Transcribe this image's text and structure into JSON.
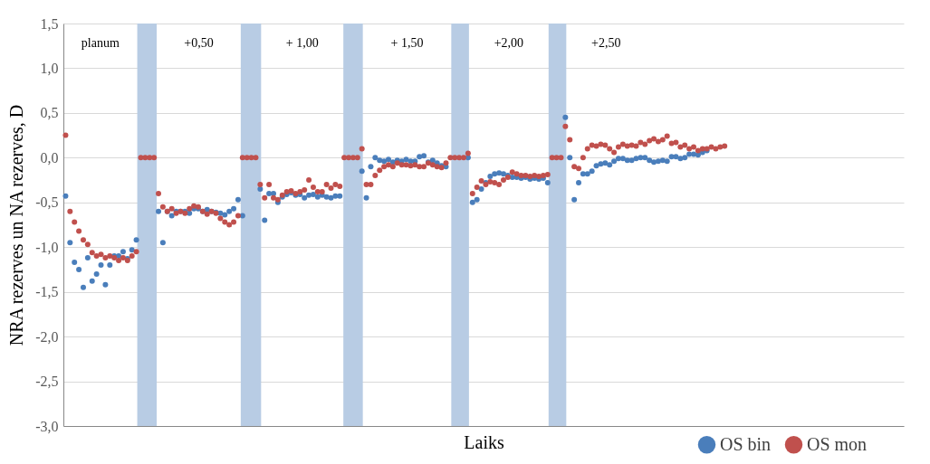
{
  "chart_data": {
    "type": "scatter",
    "xlabel": "Laiks",
    "ylabel": "NRA rezerves un NA rezerves, D",
    "ylim": [
      -3,
      1.5
    ],
    "categories": [
      null,
      null,
      null,
      null,
      null,
      null,
      null,
      null,
      null,
      null,
      null,
      null,
      null,
      null,
      null,
      null,
      null,
      null,
      null,
      null,
      null,
      null,
      null,
      null,
      null,
      null,
      null,
      null,
      null,
      null,
      null,
      null,
      null,
      null,
      null,
      null,
      null,
      null,
      null,
      null,
      null,
      null,
      null,
      null,
      null,
      null,
      null,
      null,
      null,
      null,
      null,
      null,
      null,
      null,
      null,
      null,
      null,
      null,
      null,
      null,
      null,
      null,
      null,
      null,
      null,
      null,
      null,
      null,
      null,
      null,
      null,
      null,
      null,
      null,
      null,
      null,
      null,
      null,
      null,
      null,
      null,
      null,
      null,
      null,
      null,
      null,
      null,
      null,
      null,
      null,
      null,
      null,
      null,
      null,
      null,
      null,
      null,
      null,
      null,
      null,
      null,
      null,
      null,
      null,
      null,
      null,
      null,
      null,
      null,
      null,
      null,
      null,
      null,
      null,
      null,
      null,
      null,
      null,
      null,
      null,
      null,
      null,
      null,
      null,
      null,
      null,
      null,
      null,
      null,
      null,
      null,
      null,
      null,
      null,
      null,
      null,
      null,
      null,
      null,
      null,
      null,
      null,
      null,
      null,
      null,
      null,
      null,
      null,
      null,
      null,
      null,
      null,
      null,
      null,
      null,
      null,
      null,
      null,
      null,
      null,
      null,
      null,
      null,
      null,
      null,
      null,
      null,
      null,
      null,
      null,
      null,
      null,
      null,
      null,
      null,
      null,
      null,
      null,
      null,
      null,
      null,
      null,
      null,
      null,
      null,
      null,
      null,
      null,
      null,
      null
    ],
    "yticks": [
      {
        "value": -3,
        "label": "-3,0"
      },
      {
        "value": -2.5,
        "label": "-2,5"
      },
      {
        "value": -2,
        "label": "-2,0"
      },
      {
        "value": -1.5,
        "label": "-1,5"
      },
      {
        "value": -1,
        "label": "-1,0"
      },
      {
        "value": -0.5,
        "label": "-0,5"
      },
      {
        "value": 0,
        "label": "0,0"
      },
      {
        "value": 0.5,
        "label": "0,5"
      },
      {
        "value": 1,
        "label": "1,0"
      },
      {
        "value": 1.5,
        "label": "1,5"
      }
    ],
    "tick_labels": "y",
    "grid": "y",
    "legend": "bottom right",
    "marker": "circle",
    "annotations": [
      "planum",
      "+0,50",
      "+ 1,00",
      "+ 1,50",
      "+2,00",
      "+2,50"
    ],
    "series": [
      {
        "name": "OS bin",
        "color": "#4a7ebb",
        "values": [
          -0.43,
          -0.95,
          -1.17,
          -1.25,
          -1.45,
          -1.12,
          -1.38,
          -1.3,
          -1.2,
          -1.42,
          -1.2,
          -1.1,
          -1.1,
          -1.05,
          -1.13,
          -1.03,
          -0.92,
          null,
          null,
          null,
          null,
          -0.6,
          -0.95,
          -0.6,
          -0.65,
          -0.6,
          -0.6,
          -0.6,
          -0.62,
          -0.57,
          -0.57,
          -0.6,
          -0.58,
          -0.6,
          -0.61,
          -0.62,
          -0.64,
          -0.6,
          -0.57,
          -0.47,
          -0.65,
          null,
          null,
          null,
          -0.35,
          -0.7,
          -0.4,
          -0.4,
          -0.5,
          -0.44,
          -0.41,
          -0.39,
          -0.42,
          -0.41,
          -0.45,
          -0.42,
          -0.41,
          -0.44,
          -0.42,
          -0.44,
          -0.45,
          -0.43,
          -0.43,
          null,
          null,
          null,
          null,
          -0.15,
          -0.45,
          -0.1,
          0.0,
          -0.03,
          -0.04,
          -0.02,
          -0.05,
          -0.03,
          -0.04,
          -0.02,
          -0.04,
          -0.04,
          0.01,
          0.02,
          -0.05,
          -0.03,
          -0.06,
          -0.09,
          -0.1,
          null,
          null,
          null,
          null,
          0.0,
          -0.5,
          -0.47,
          -0.35,
          -0.28,
          -0.21,
          -0.18,
          -0.17,
          -0.18,
          -0.2,
          -0.22,
          -0.22,
          -0.23,
          -0.22,
          -0.24,
          -0.23,
          -0.24,
          -0.23,
          -0.28,
          null,
          null,
          null,
          0.45,
          0.0,
          -0.47,
          -0.28,
          -0.18,
          -0.18,
          -0.15,
          -0.09,
          -0.07,
          -0.06,
          -0.08,
          -0.04,
          -0.01,
          -0.01,
          -0.03,
          -0.03,
          -0.01,
          0.0,
          0.0,
          -0.03,
          -0.05,
          -0.04,
          -0.03,
          -0.04,
          0.01,
          0.01,
          -0.01,
          0.0,
          0.04,
          0.04,
          0.03,
          0.06,
          0.08,
          null,
          null,
          null,
          null,
          null,
          null,
          null,
          null,
          null,
          null,
          null,
          null,
          null,
          null,
          null,
          null,
          null,
          null,
          null,
          null,
          null,
          null,
          null,
          null,
          null,
          null,
          null,
          null,
          null,
          null,
          null,
          null,
          null,
          null,
          null,
          null,
          null,
          null,
          null,
          null,
          null,
          null,
          null,
          null
        ]
      },
      {
        "name": "OS mon",
        "color": "#c0504d",
        "values": [
          0.25,
          -0.6,
          -0.72,
          -0.82,
          -0.92,
          -0.97,
          -1.06,
          -1.1,
          -1.08,
          -1.12,
          -1.1,
          -1.12,
          -1.15,
          -1.12,
          -1.15,
          -1.1,
          -1.05,
          0,
          0,
          0,
          0,
          -0.4,
          -0.55,
          -0.6,
          -0.57,
          -0.62,
          -0.6,
          -0.62,
          -0.57,
          -0.54,
          -0.55,
          -0.6,
          -0.63,
          -0.6,
          -0.62,
          -0.68,
          -0.72,
          -0.75,
          -0.72,
          -0.65,
          0,
          0,
          0,
          0,
          -0.3,
          -0.45,
          -0.3,
          -0.45,
          -0.47,
          -0.42,
          -0.38,
          -0.37,
          -0.4,
          -0.38,
          -0.36,
          -0.25,
          -0.33,
          -0.38,
          -0.38,
          -0.3,
          -0.34,
          -0.3,
          -0.32,
          0,
          0,
          0,
          0,
          0.1,
          -0.3,
          -0.3,
          -0.2,
          -0.14,
          -0.1,
          -0.08,
          -0.1,
          -0.06,
          -0.08,
          -0.08,
          -0.09,
          -0.08,
          -0.1,
          -0.1,
          -0.06,
          -0.08,
          -0.1,
          -0.11,
          -0.06,
          0,
          0,
          0,
          0,
          0.05,
          -0.4,
          -0.33,
          -0.26,
          -0.3,
          -0.27,
          -0.28,
          -0.3,
          -0.25,
          -0.22,
          -0.16,
          -0.18,
          -0.2,
          -0.2,
          -0.21,
          -0.2,
          -0.21,
          -0.2,
          -0.19,
          0,
          0,
          0,
          0.35,
          0.2,
          -0.1,
          -0.12,
          0.0,
          0.1,
          0.14,
          0.13,
          0.15,
          0.14,
          0.1,
          0.06,
          0.12,
          0.15,
          0.13,
          0.14,
          0.13,
          0.17,
          0.15,
          0.19,
          0.21,
          0.18,
          0.2,
          0.24,
          0.16,
          0.17,
          0.12,
          0.14,
          0.1,
          0.12,
          0.08,
          0.1,
          0.1,
          0.12,
          0.1,
          0.12,
          0.13,
          null,
          null,
          null,
          null,
          null,
          null,
          null,
          null,
          null,
          null,
          null,
          null,
          null,
          null,
          null,
          null,
          null,
          null,
          null,
          null,
          null,
          null,
          null,
          null,
          null,
          null,
          null,
          null,
          null,
          null,
          null,
          null,
          null,
          null,
          null,
          null,
          null,
          null,
          null,
          null
        ]
      }
    ]
  }
}
